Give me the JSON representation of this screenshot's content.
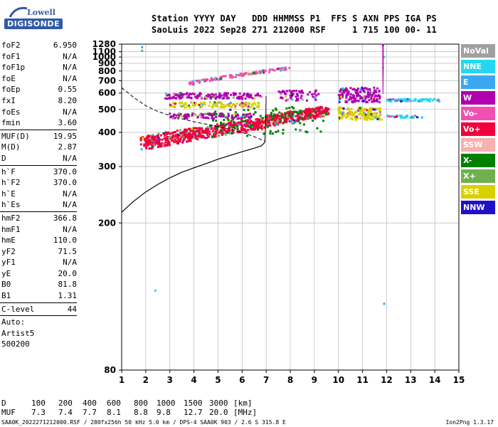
{
  "logo": {
    "top": "Lowell",
    "bottom": "DIGISONDE"
  },
  "header": {
    "line1": "Station YYYY DAY   DDD HHMMSS P1  FFS S AXN PPS IGA PS",
    "line2": "SaoLuis 2022 Sep28 271 212000 RSF     1 715 100 00- 11"
  },
  "params": [
    {
      "name": "foF2",
      "value": "6.950"
    },
    {
      "name": "foF1",
      "value": "N/A"
    },
    {
      "name": "foF1p",
      "value": "N/A"
    },
    {
      "name": "foE",
      "value": "N/A"
    },
    {
      "name": "foEp",
      "value": "0.55"
    },
    {
      "name": "fxI",
      "value": "8.20"
    },
    {
      "name": "foEs",
      "value": "N/A"
    },
    {
      "name": "fmin",
      "value": "3.60"
    },
    {
      "sep": true
    },
    {
      "name": "MUF(D)",
      "value": "19.95"
    },
    {
      "name": "M(D)",
      "value": "2.87"
    },
    {
      "name": "D",
      "value": "N/A"
    },
    {
      "sep": true
    },
    {
      "name": "h`F",
      "value": "370.0"
    },
    {
      "name": "h`F2",
      "value": "370.0"
    },
    {
      "name": "h`E",
      "value": "N/A"
    },
    {
      "name": "h`Es",
      "value": "N/A"
    },
    {
      "sep": true
    },
    {
      "name": "hmF2",
      "value": "366.8"
    },
    {
      "name": "hmF1",
      "value": "N/A"
    },
    {
      "name": "hmE",
      "value": "110.0"
    },
    {
      "name": "yF2",
      "value": "71.5"
    },
    {
      "name": "yF1",
      "value": "N/A"
    },
    {
      "name": "yE",
      "value": "20.0"
    },
    {
      "name": "B0",
      "value": "81.8"
    },
    {
      "name": "B1",
      "value": "1.31"
    },
    {
      "sep": true
    },
    {
      "name": "C-level",
      "value": "44"
    },
    {
      "sep": true
    },
    {
      "text": "Auto:"
    },
    {
      "text": "Artist5"
    },
    {
      "text": "500200"
    }
  ],
  "legend": [
    {
      "label": "NoVal",
      "color": "#a0a0a0"
    },
    {
      "label": "NNE",
      "color": "#22d8f0"
    },
    {
      "label": "E",
      "color": "#3aa8f0"
    },
    {
      "label": "W",
      "color": "#b000b0"
    },
    {
      "label": "Vo-",
      "color": "#f050b0"
    },
    {
      "label": "Vo+",
      "color": "#f0003c"
    },
    {
      "label": "SSW",
      "color": "#f8b0b0"
    },
    {
      "label": "X-",
      "color": "#008000"
    },
    {
      "label": "X+",
      "color": "#70b050"
    },
    {
      "label": "SSE",
      "color": "#d8d000"
    },
    {
      "label": "NNW",
      "color": "#2010c8"
    }
  ],
  "chart_data": {
    "type": "scatter",
    "title": "",
    "xlabel": "",
    "ylabel": "",
    "xlim": [
      1,
      15
    ],
    "ylim": [
      80,
      1280
    ],
    "y_scale": "reciprocal",
    "x_ticks": [
      1,
      2,
      3,
      4,
      5,
      6,
      7,
      8,
      9,
      10,
      11,
      12,
      13,
      14,
      15
    ],
    "y_ticks": [
      80,
      200,
      300,
      400,
      500,
      600,
      700,
      800,
      900,
      1000,
      1100,
      1280
    ],
    "grid": true,
    "profile_curve": {
      "x": [
        1.0,
        1.5,
        2.0,
        2.5,
        3.0,
        3.5,
        4.0,
        4.5,
        5.0,
        5.5,
        6.0,
        6.5,
        6.8,
        6.95
      ],
      "y": [
        215,
        232,
        248,
        262,
        275,
        287,
        297,
        307,
        318,
        328,
        338,
        348,
        355,
        366.8
      ]
    },
    "profile_extension": {
      "x": [
        6.95,
        6.97,
        6.99,
        7.0
      ],
      "y": [
        366.8,
        420,
        500,
        580
      ]
    },
    "muf_curve": {
      "x": [
        1.0,
        1.5,
        2.0,
        2.5,
        3.0,
        3.5,
        4.0,
        4.5,
        5.0,
        5.5,
        6.0,
        6.5,
        6.95
      ],
      "y": [
        640,
        570,
        520,
        490,
        470,
        455,
        442,
        432,
        422,
        412,
        400,
        385,
        370
      ]
    },
    "echo_bands": [
      {
        "series": "Vo+",
        "x0": 1.8,
        "x1": 7.0,
        "y0": 340,
        "y1": 385,
        "slope_to": 460,
        "count": 600
      },
      {
        "series": "Vo+",
        "x0": 7.0,
        "x1": 9.6,
        "y0": 420,
        "y1": 470,
        "slope_to": 520,
        "count": 320
      },
      {
        "series": "X-",
        "x0": 4.5,
        "x1": 9.5,
        "y0": 380,
        "y1": 500,
        "slope_to": 520,
        "count": 120
      },
      {
        "series": "W",
        "x0": 2.8,
        "x1": 6.8,
        "y0": 560,
        "y1": 600,
        "slope_to": 600,
        "count": 160
      },
      {
        "series": "SSE",
        "x0": 3.0,
        "x1": 6.7,
        "y0": 510,
        "y1": 540,
        "slope_to": 540,
        "count": 120
      },
      {
        "series": "W",
        "x0": 3.0,
        "x1": 6.5,
        "y0": 455,
        "y1": 480,
        "slope_to": 480,
        "count": 110
      },
      {
        "series": "Vo-",
        "x0": 3.8,
        "x1": 8.0,
        "y0": 660,
        "y1": 690,
        "slope_to": 850,
        "count": 110
      },
      {
        "series": "W",
        "x0": 10.0,
        "x1": 11.8,
        "y0": 540,
        "y1": 640,
        "slope_to": 640,
        "count": 160
      },
      {
        "series": "SSE",
        "x0": 10.0,
        "x1": 11.8,
        "y0": 450,
        "y1": 510,
        "slope_to": 510,
        "count": 150
      },
      {
        "series": "NNE",
        "x0": 12.0,
        "x1": 14.2,
        "y0": 545,
        "y1": 560,
        "slope_to": 560,
        "count": 70
      },
      {
        "series": "NNE",
        "x0": 12.0,
        "x1": 13.5,
        "y0": 460,
        "y1": 470,
        "slope_to": 470,
        "count": 30
      },
      {
        "series": "W",
        "x0": 7.5,
        "x1": 9.2,
        "y0": 550,
        "y1": 620,
        "slope_to": 620,
        "count": 60
      }
    ]
  },
  "dmuf": {
    "d_label": "D",
    "muf_label": "MUF",
    "d_values": [
      "100",
      "200",
      "400",
      "600",
      "800",
      "1000",
      "1500",
      "3000"
    ],
    "muf_values": [
      "7.3",
      "7.4",
      "7.7",
      "8.1",
      "8.8",
      "9.8",
      "12.7",
      "20.0"
    ],
    "d_unit": "[km]",
    "muf_unit": "[MHz]"
  },
  "footer": "SAA0K_2022271212000.RSF / 280fx256h 50 kHz 5.0 km / DPS-4 SAA0K 903 / 2.6 S 315.8 E",
  "version": "Ion2Png 1.3.17"
}
